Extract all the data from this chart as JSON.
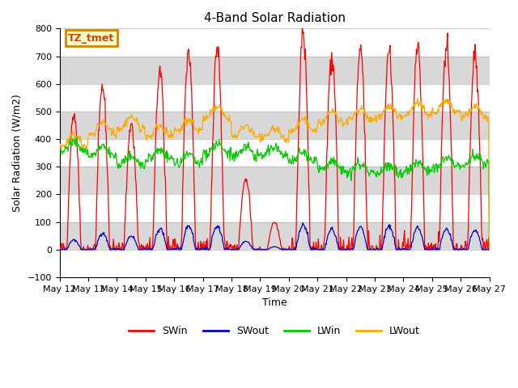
{
  "title": "4-Band Solar Radiation",
  "xlabel": "Time",
  "ylabel": "Solar Radiation (W/m2)",
  "ylim": [
    -100,
    800
  ],
  "annotation_text": "TZ_tmet",
  "annotation_facecolor": "#ffffcc",
  "annotation_edgecolor": "#cc8800",
  "colors": {
    "SWin": "#ff0000",
    "SWout": "#0000cc",
    "LWin": "#00cc00",
    "LWout": "#ffaa00"
  },
  "legend_labels": [
    "SWin",
    "SWout",
    "LWin",
    "LWout"
  ],
  "background_color": "#ffffff",
  "num_days": 15,
  "start_day": 12,
  "SWin_peaks": [
    495,
    590,
    455,
    650,
    720,
    735,
    260,
    100,
    790,
    700,
    730,
    725,
    740,
    740,
    710
  ],
  "SWout_peaks": [
    35,
    60,
    50,
    75,
    85,
    85,
    30,
    10,
    90,
    75,
    80,
    85,
    80,
    75,
    70
  ],
  "LWin_bases": [
    360,
    340,
    310,
    330,
    310,
    350,
    340,
    340,
    320,
    290,
    280,
    275,
    285,
    300,
    310
  ],
  "LWout_means": [
    375,
    420,
    440,
    410,
    430,
    475,
    410,
    400,
    430,
    460,
    470,
    480,
    490,
    500,
    480
  ],
  "yticks": [
    -100,
    0,
    100,
    200,
    300,
    400,
    500,
    600,
    700,
    800
  ]
}
